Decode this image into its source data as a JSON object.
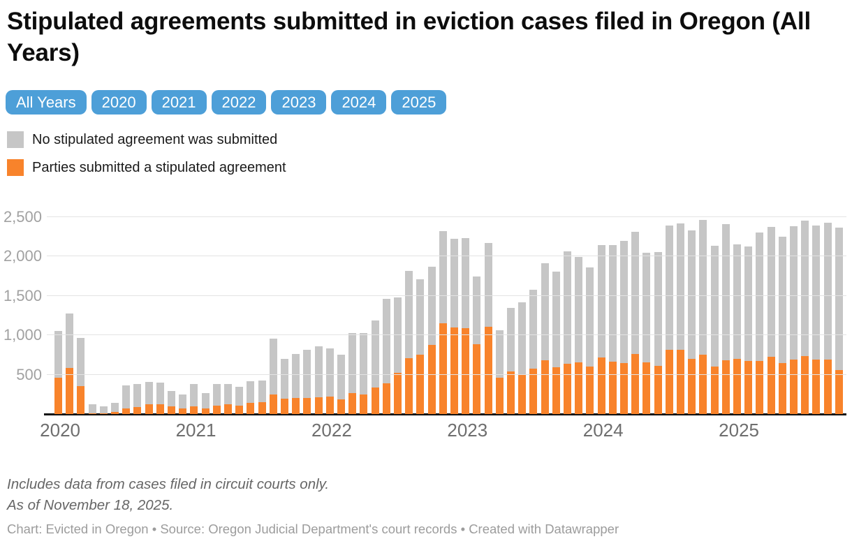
{
  "header": {
    "title": "Stipulated agreements submitted in eviction cases filed in Oregon (All Years)"
  },
  "tabs": [
    {
      "label": "All Years"
    },
    {
      "label": "2020"
    },
    {
      "label": "2021"
    },
    {
      "label": "2022"
    },
    {
      "label": "2023"
    },
    {
      "label": "2024"
    },
    {
      "label": "2025"
    }
  ],
  "legend": {
    "items": [
      {
        "label": "No stipulated agreement was submitted",
        "color": "#c6c6c6"
      },
      {
        "label": "Parties submitted a stipulated agreement",
        "color": "#f8832b"
      }
    ]
  },
  "chart_data": {
    "type": "bar",
    "stacked": true,
    "title": "Stipulated agreements submitted in eviction cases filed in Oregon (All Years)",
    "x": [
      "Jan 2020",
      "Feb 2020",
      "Mar 2020",
      "Apr 2020",
      "May 2020",
      "Jun 2020",
      "Jul 2020",
      "Aug 2020",
      "Sep 2020",
      "Oct 2020",
      "Nov 2020",
      "Dec 2020",
      "Jan 2021",
      "Feb 2021",
      "Mar 2021",
      "Apr 2021",
      "May 2021",
      "Jun 2021",
      "Jul 2021",
      "Aug 2021",
      "Sep 2021",
      "Oct 2021",
      "Nov 2021",
      "Dec 2021",
      "Jan 2022",
      "Feb 2022",
      "Mar 2022",
      "Apr 2022",
      "May 2022",
      "Jun 2022",
      "Jul 2022",
      "Aug 2022",
      "Sep 2022",
      "Oct 2022",
      "Nov 2022",
      "Dec 2022",
      "Jan 2023",
      "Feb 2023",
      "Mar 2023",
      "Apr 2023",
      "May 2023",
      "Jun 2023",
      "Jul 2023",
      "Aug 2023",
      "Sep 2023",
      "Oct 2023",
      "Nov 2023",
      "Dec 2023",
      "Jan 2024",
      "Feb 2024",
      "Mar 2024",
      "Apr 2024",
      "May 2024",
      "Jun 2024",
      "Jul 2024",
      "Aug 2024",
      "Sep 2024",
      "Oct 2024",
      "Nov 2024",
      "Dec 2024",
      "Jan 2025",
      "Feb 2025",
      "Mar 2025",
      "Apr 2025",
      "May 2025",
      "Jun 2025",
      "Jul 2025",
      "Aug 2025",
      "Sep 2025",
      "Oct 2025"
    ],
    "series": [
      {
        "name": "Parties submitted a stipulated agreement",
        "color": "#f8832b",
        "values": [
          460,
          585,
          355,
          10,
          5,
          25,
          70,
          85,
          120,
          120,
          100,
          70,
          100,
          70,
          105,
          120,
          110,
          140,
          155,
          245,
          195,
          205,
          205,
          215,
          220,
          185,
          265,
          245,
          335,
          390,
          525,
          705,
          755,
          875,
          1155,
          1095,
          1090,
          890,
          1110,
          460,
          540,
          495,
          580,
          680,
          590,
          640,
          655,
          600,
          715,
          665,
          645,
          760,
          660,
          615,
          820,
          815,
          700,
          750,
          600,
          680,
          700,
          670,
          675,
          730,
          650,
          690,
          735,
          690,
          690,
          560
        ]
      },
      {
        "name": "No stipulated agreement was submitted",
        "color": "#c6c6c6",
        "values": [
          595,
          690,
          615,
          115,
          90,
          115,
          295,
          300,
          290,
          280,
          195,
          180,
          280,
          200,
          280,
          265,
          240,
          275,
          275,
          710,
          505,
          555,
          615,
          645,
          610,
          565,
          760,
          780,
          850,
          1070,
          955,
          1115,
          955,
          995,
          1170,
          1130,
          1140,
          855,
          1060,
          600,
          805,
          920,
          1000,
          1235,
          1215,
          1430,
          1340,
          1260,
          1430,
          1480,
          1555,
          1555,
          1385,
          1440,
          1570,
          1605,
          1630,
          1715,
          1535,
          1735,
          1450,
          1455,
          1630,
          1650,
          1600,
          1695,
          1720,
          1700,
          1735,
          1810
        ]
      }
    ],
    "ylim": [
      0,
      2500
    ],
    "yticks": [
      {
        "value": 500,
        "label": "500"
      },
      {
        "value": 1000,
        "label": "1,000"
      },
      {
        "value": 1500,
        "label": "1,500"
      },
      {
        "value": 2000,
        "label": "2,000"
      },
      {
        "value": 2500,
        "label": "2,500"
      }
    ],
    "xticks": [
      {
        "label": "2020",
        "month_index": 0
      },
      {
        "label": "2021",
        "month_index": 12
      },
      {
        "label": "2022",
        "month_index": 24
      },
      {
        "label": "2023",
        "month_index": 36
      },
      {
        "label": "2024",
        "month_index": 48
      },
      {
        "label": "2025",
        "month_index": 60
      }
    ],
    "grid": "horizontal",
    "legend_position": "top-left"
  },
  "footer": {
    "note_line1": "Includes data from cases filed in circuit courts only.",
    "note_line2": "As of November 18, 2025.",
    "attribution": "Chart: Evicted in Oregon • Source: Oregon Judicial Department's court records • Created with Datawrapper"
  }
}
